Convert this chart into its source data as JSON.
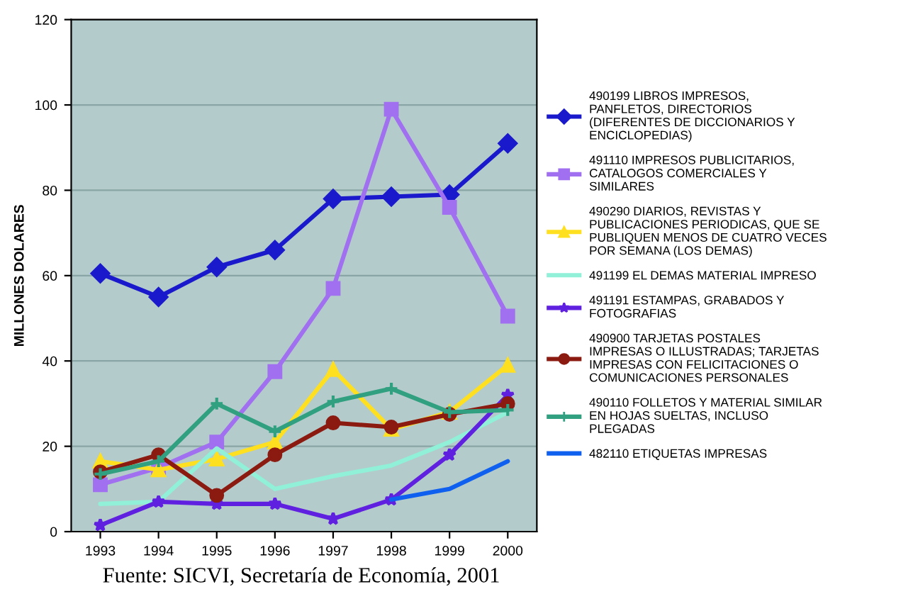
{
  "chart_data": {
    "type": "line",
    "ylabel": "MILLONES DOLARES",
    "categories": [
      "1993",
      "1994",
      "1995",
      "1996",
      "1997",
      "1998",
      "1999",
      "2000"
    ],
    "ylim": [
      0,
      120
    ],
    "yticks": [
      0,
      20,
      40,
      60,
      80,
      100,
      120
    ],
    "grid": "y",
    "legend": "right",
    "line_style": "solid",
    "annotations": [
      "Fuente: SICVI, Secretaría de Economía, 2001"
    ],
    "series": [
      {
        "name": "490199 LIBROS IMPRESOS,\nPANFLETOS, DIRECTORIOS\n(DIFERENTES DE DICCIONARIOS Y\nENCICLOPEDIAS)",
        "color": "#1a1acc",
        "marker": "diamond",
        "values": [
          60.5,
          55,
          62,
          66,
          78,
          78.5,
          79,
          91
        ]
      },
      {
        "name": "491110 IMPRESOS PUBLICITARIOS,\nCATALOGOS COMERCIALES Y\nSIMILARES",
        "color": "#a070f0",
        "marker": "square",
        "values": [
          11,
          15,
          21,
          37.5,
          57,
          99,
          76,
          50.5
        ]
      },
      {
        "name": "490290 DIARIOS, REVISTAS Y\nPUBLICACIONES PERIODICAS, QUE SE\nPUBLIQUEN MENOS DE CUATRO VECES\nPOR SEMANA (LOS DEMAS)",
        "color": "#ffe020",
        "marker": "triangle",
        "values": [
          16.5,
          14.5,
          17,
          21,
          38,
          24,
          28,
          39
        ]
      },
      {
        "name": "491199 EL DEMAS MATERIAL IMPRESO",
        "color": "#90f0d8",
        "marker": "none",
        "values": [
          6.5,
          7,
          19.5,
          10,
          13,
          15.5,
          21,
          28
        ]
      },
      {
        "name": "491191 ESTAMPAS, GRABADOS Y\nFOTOGRAFIAS",
        "color": "#6020e0",
        "marker": "star",
        "values": [
          1.5,
          7,
          6.5,
          6.5,
          3,
          7.5,
          18,
          32
        ]
      },
      {
        "name": "490900 TARJETAS POSTALES\nIMPRESAS O ILLUSTRADAS; TARJETAS\nIMPRESAS CON FELICITACIONES O\nCOMUNICACIONES PERSONALES",
        "color": "#8b1a10",
        "marker": "circle",
        "values": [
          14,
          18,
          8.5,
          18,
          25.5,
          24.5,
          27.5,
          30
        ]
      },
      {
        "name": "490110 FOLLETOS Y MATERIAL SIMILAR\nEN HOJAS SUELTAS, INCLUSO\nPLEGADAS",
        "color": "#30a080",
        "marker": "cross",
        "values": [
          13.5,
          16.5,
          30,
          23.5,
          30.5,
          33.5,
          28,
          28.5
        ]
      },
      {
        "name": "482110 ETIQUETAS IMPRESAS",
        "color": "#1060f0",
        "marker": "none",
        "values": [
          null,
          null,
          null,
          null,
          null,
          7.5,
          10,
          16.5
        ]
      }
    ]
  }
}
